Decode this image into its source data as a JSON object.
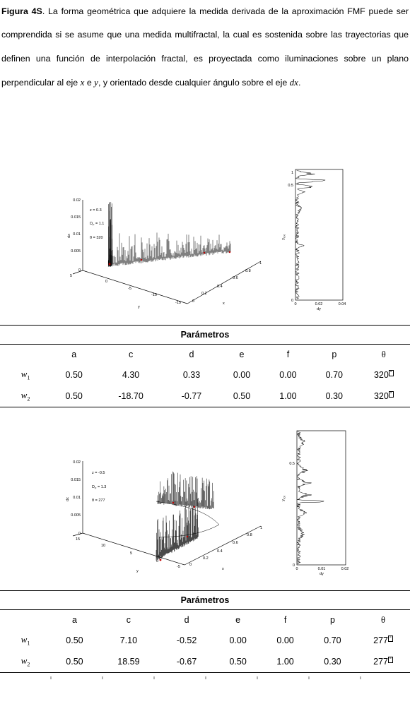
{
  "caption": {
    "label": "Figura 4S",
    "text_1": ". La forma geométrica que adquiere la medida derivada de la aproximación FMF puede ser comprendida si se asume que una medida multifractal, la cual es sostenida sobre las trayectorias que definen una función de interpolación fractal, es proyectada como iluminaciones sobre un plano perpendicular al eje ",
    "var_x": "x",
    "text_e": " e ",
    "var_y": "y",
    "text_2": ", y orientado desde cualquier ángulo sobre el eje ",
    "var_dx": "dx",
    "text_3": "."
  },
  "figure1": {
    "plot3d": {
      "ylabel": "dx",
      "yticks": [
        "0.02",
        "0.015",
        "0.01",
        "0.005",
        "0"
      ],
      "annot": [
        "z = 0.3",
        "D",
        "F",
        " = 1.1",
        "θ = 320"
      ],
      "yaxis_label": "y",
      "yaxis_ticks": [
        "5",
        "0",
        "-5",
        "-10",
        "-15"
      ],
      "xaxis_label": "x",
      "xaxis_ticks": [
        "0",
        "0.2",
        "0.4",
        "0.6",
        "0.8",
        "1"
      ]
    },
    "proj": {
      "ylabel": "y",
      "ylabel_sub": "rot",
      "yticks": [
        "1",
        "0.5",
        "0"
      ],
      "xticks": [
        "0",
        "0.02",
        "0.04"
      ],
      "xlabel": "dy"
    }
  },
  "table1": {
    "title": "Parámetros",
    "headers": [
      "a",
      "c",
      "d",
      "e",
      "f",
      "p",
      "θ"
    ],
    "rows": [
      {
        "w": "w",
        "sub": "1",
        "values": [
          "0.50",
          "4.30",
          "0.33",
          "0.00",
          "0.00",
          "0.70",
          "320"
        ]
      },
      {
        "w": "w",
        "sub": "2",
        "values": [
          "0.50",
          "-18.70",
          "-0.77",
          "0.50",
          "1.00",
          "0.30",
          "320"
        ]
      }
    ]
  },
  "figure2": {
    "plot3d": {
      "ylabel": "dx",
      "yticks": [
        "0.02",
        "0.015",
        "0.01",
        "0.005",
        "0"
      ],
      "annot": [
        "z = -0.5",
        "D",
        "F",
        " = 1.3",
        "θ = 277"
      ],
      "yaxis_label": "y",
      "yaxis_ticks": [
        "15",
        "10",
        "5",
        "0",
        "-5"
      ],
      "xaxis_label": "x",
      "xaxis_ticks": [
        "0",
        "0.2",
        "0.4",
        "0.6",
        "0.8",
        "1"
      ]
    },
    "proj": {
      "ylabel": "y",
      "ylabel_sub": "rot",
      "yticks": [
        "0.5",
        "0"
      ],
      "xticks": [
        "0",
        "0.01",
        "0.02"
      ],
      "xlabel": "dy"
    }
  },
  "table2": {
    "title": "Parámetros",
    "headers": [
      "a",
      "c",
      "d",
      "e",
      "f",
      "p",
      "θ"
    ],
    "rows": [
      {
        "w": "w",
        "sub": "1",
        "values": [
          "0.50",
          "7.10",
          "-0.52",
          "0.00",
          "0.00",
          "0.70",
          "277"
        ]
      },
      {
        "w": "w",
        "sub": "2",
        "values": [
          "0.50",
          "18.59",
          "-0.67",
          "0.50",
          "1.00",
          "0.30",
          "277"
        ]
      }
    ]
  }
}
